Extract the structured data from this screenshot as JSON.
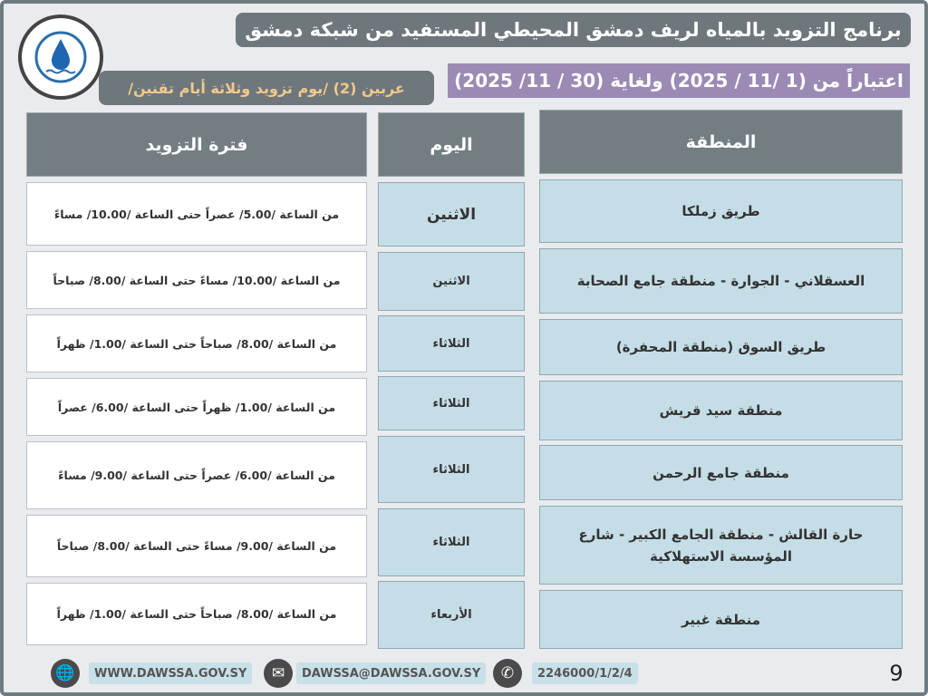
{
  "header": {
    "title": "برنامج التزويد بالمياه لريف دمشق المحيطي المستفيد من شبكة دمشق",
    "date_range": "اعتباراً من (1 /11 / 2025) ولغاية (30 / 11/ 2025)",
    "schedule_note": "عربين (2)   /يوم تزويد وثلاثة أيام تقنين/"
  },
  "columns": {
    "area": "المنطقة",
    "day": "اليوم",
    "period": "فترة التزويد"
  },
  "rows": [
    {
      "area": "طريق زملكا",
      "day": "الاثنين",
      "period": "من الساعة /5.00/ عصراً حتى الساعة /10.00/ مساءً"
    },
    {
      "area": "العسقلاني - الجوارة - منطقة جامع الصحابة",
      "day": "الاثنين",
      "period": "من الساعة /10.00/ مساءً حتى الساعة /8.00/ صباحاً"
    },
    {
      "area": "طريق السوق (منطقة المحفرة)",
      "day": "الثلاثاء",
      "period": "من الساعة /8.00/ صباحاً حتى الساعة /1.00/ ظهراً"
    },
    {
      "area": "منطقة سيد قريش",
      "day": "الثلاثاء",
      "period": "من الساعة /1.00/ ظهراً حتى الساعة /6.00/ عصراً"
    },
    {
      "area": "منطقة جامع الرحمن",
      "day": "الثلاثاء",
      "period": "من الساعة /6.00/ عصراً حتى الساعة /9.00/ مساءً"
    },
    {
      "area": "حارة القالش - منطقة الجامع الكبير - شارع المؤسسة الاستهلاكية",
      "day": "الثلاثاء",
      "period": "من الساعة /9.00/ مساءً حتى الساعة /8.00/ صباحاً"
    },
    {
      "area": "منطقة غبير",
      "day": "الأربعاء",
      "period": "من الساعة /8.00/ صباحاً حتى الساعة /1.00/ ظهراً"
    }
  ],
  "footer": {
    "website": "WWW.DAWSSA.GOV.SY",
    "email": "DAWSSA@DAWSSA.GOV.SY",
    "phone": "2246000/1/2/4",
    "page_number": "9"
  }
}
